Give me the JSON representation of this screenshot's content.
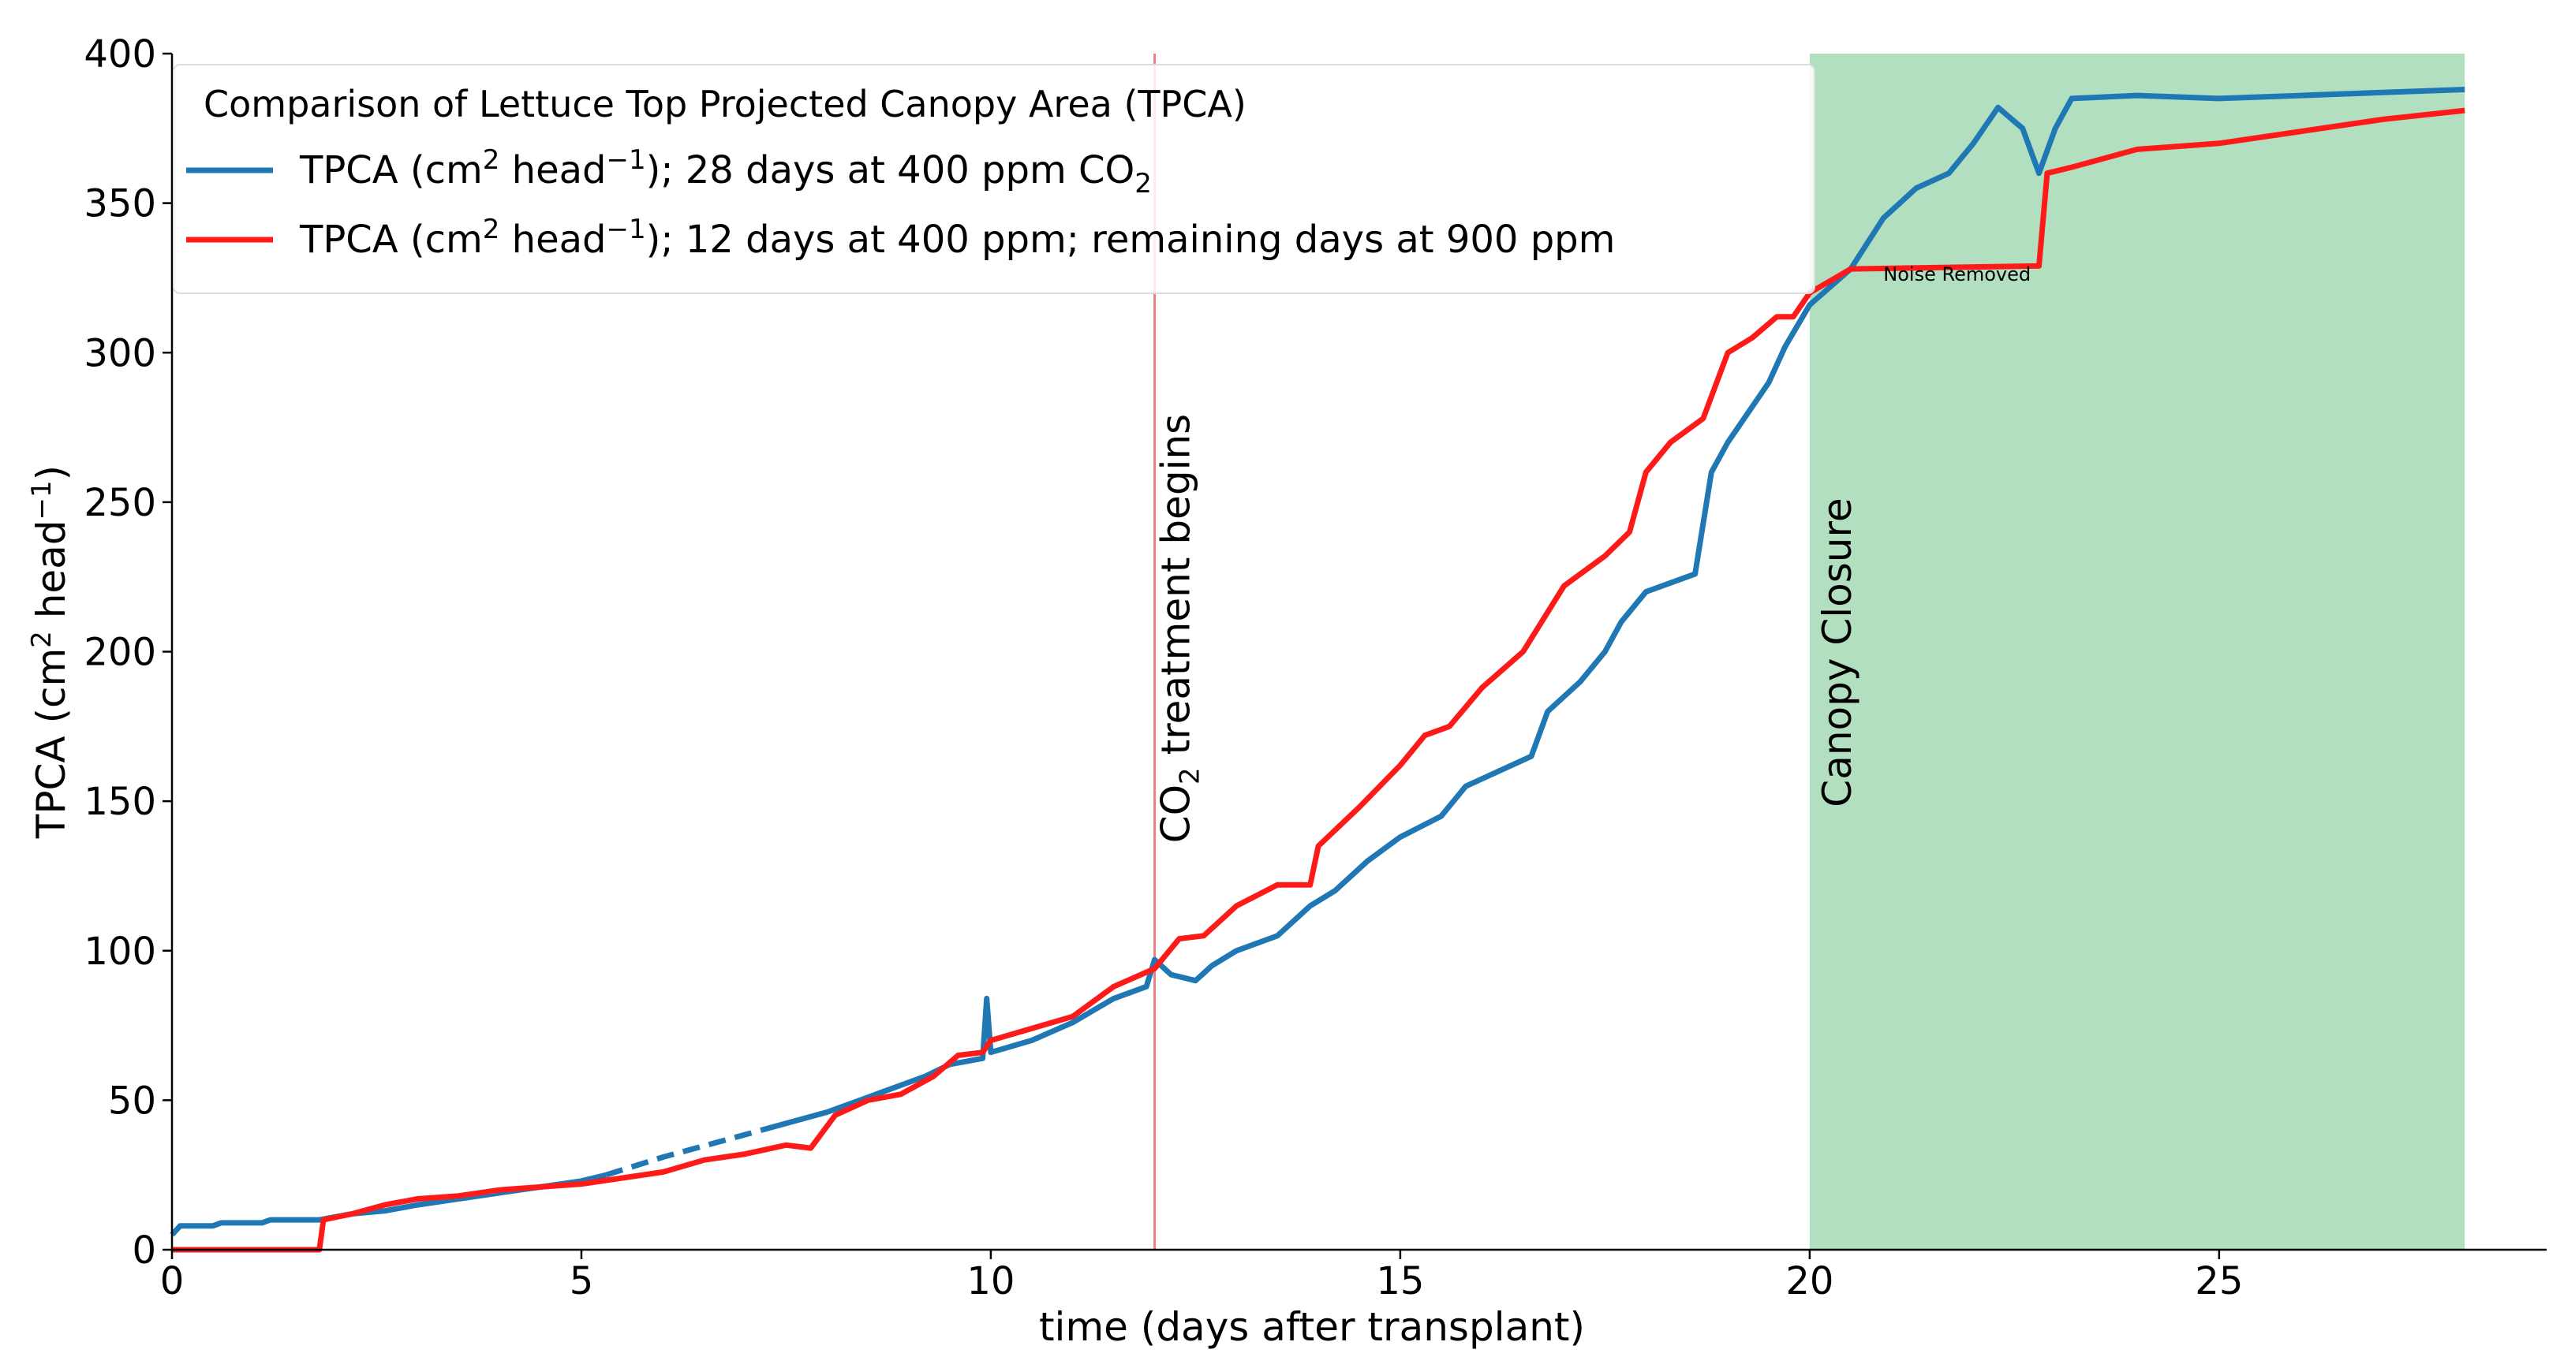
{
  "chart_data": {
    "type": "line",
    "title": "",
    "xlabel": "time (days after transplant)",
    "ylabel_main": "TPCA (cm",
    "ylabel_sup": "2",
    "ylabel_mid": " head",
    "ylabel_sup2": "−1",
    "ylabel_end": ")",
    "xlim": [
      0,
      29
    ],
    "ylim": [
      0,
      400
    ],
    "xticks": [
      0,
      5,
      10,
      15,
      20,
      25
    ],
    "yticks": [
      0,
      50,
      100,
      150,
      200,
      250,
      300,
      350,
      400
    ],
    "grid": false,
    "legend": {
      "placement": "top-left",
      "title": "Comparison of Lettuce Top Projected Canopy Area (TPCA)",
      "entries": [
        {
          "pre": "TPCA (cm",
          "sup": "2",
          "mid": " head",
          "sup2": "−1",
          "post": "); 28 days at 400 ppm CO",
          "sub": "2"
        },
        {
          "pre": "TPCA (cm",
          "sup": "2",
          "mid": " head",
          "sup2": "−1",
          "post": "); 12 days at 400 ppm; remaining days at 900 ppm",
          "sub": ""
        }
      ]
    },
    "annotations": {
      "co2_line_x": 12,
      "co2_color": "#f08080",
      "co2_label_pre": "CO",
      "co2_label_sub": "2",
      "co2_label_post": " treatment begins",
      "shade_range": [
        20,
        28
      ],
      "shade_color": "#b2dfbf",
      "shade_label": "Canopy Closure",
      "noise_label": "Noise Removed"
    },
    "series": [
      {
        "name": "TPCA (cm2 head−1); 28 days at 400 ppm CO2",
        "color": "#1f77b4",
        "segments": [
          {
            "style": "solid",
            "points": [
              [
                0,
                5
              ],
              [
                0.1,
                8
              ],
              [
                0.5,
                8
              ],
              [
                0.6,
                9
              ],
              [
                1.1,
                9
              ],
              [
                1.2,
                10
              ],
              [
                1.8,
                10
              ],
              [
                2.2,
                12
              ],
              [
                2.6,
                13
              ],
              [
                3.0,
                15
              ],
              [
                3.5,
                17
              ],
              [
                4.0,
                19
              ],
              [
                4.5,
                21
              ],
              [
                5.0,
                23
              ],
              [
                5.3,
                25
              ]
            ]
          },
          {
            "style": "dashed",
            "points": [
              [
                5.3,
                25
              ],
              [
                6.0,
                31
              ],
              [
                6.8,
                37
              ],
              [
                7.2,
                40
              ]
            ]
          },
          {
            "style": "solid",
            "points": [
              [
                7.2,
                40
              ],
              [
                7.6,
                43
              ],
              [
                8.0,
                46
              ],
              [
                8.4,
                50
              ],
              [
                8.8,
                54
              ],
              [
                9.2,
                58
              ],
              [
                9.5,
                62
              ],
              [
                9.9,
                64
              ],
              [
                9.95,
                84
              ],
              [
                10.0,
                66
              ],
              [
                10.5,
                70
              ],
              [
                11.0,
                76
              ],
              [
                11.5,
                84
              ],
              [
                11.9,
                88
              ],
              [
                12.0,
                97
              ],
              [
                12.2,
                92
              ],
              [
                12.5,
                90
              ],
              [
                12.7,
                95
              ],
              [
                13.0,
                100
              ],
              [
                13.5,
                105
              ],
              [
                13.9,
                115
              ],
              [
                14.2,
                120
              ],
              [
                14.6,
                130
              ],
              [
                15.0,
                138
              ],
              [
                15.5,
                145
              ],
              [
                15.8,
                155
              ],
              [
                16.2,
                160
              ],
              [
                16.6,
                165
              ],
              [
                16.8,
                180
              ],
              [
                17.2,
                190
              ],
              [
                17.5,
                200
              ],
              [
                17.7,
                210
              ],
              [
                18.0,
                220
              ],
              [
                18.6,
                226
              ],
              [
                18.8,
                260
              ],
              [
                19.0,
                270
              ],
              [
                19.5,
                290
              ],
              [
                19.7,
                302
              ],
              [
                20.0,
                316
              ],
              [
                20.5,
                328
              ],
              [
                20.9,
                345
              ],
              [
                21.3,
                355
              ],
              [
                21.7,
                360
              ],
              [
                22.0,
                370
              ],
              [
                22.3,
                382
              ],
              [
                22.6,
                375
              ],
              [
                22.8,
                360
              ],
              [
                23.0,
                375
              ],
              [
                23.2,
                385
              ],
              [
                24.0,
                386
              ],
              [
                25.0,
                385
              ],
              [
                26.0,
                386
              ],
              [
                27.0,
                387
              ],
              [
                28.0,
                388
              ]
            ]
          }
        ]
      },
      {
        "name": "TPCA (cm2 head−1); 12 days at 400 ppm; remaining days at 900 ppm",
        "color": "#ff1a1a",
        "segments": [
          {
            "style": "solid",
            "points": [
              [
                0,
                0
              ],
              [
                1.8,
                0
              ],
              [
                1.85,
                10
              ],
              [
                2.2,
                12
              ],
              [
                2.6,
                15
              ],
              [
                3.0,
                17
              ],
              [
                3.5,
                18
              ],
              [
                4.0,
                20
              ],
              [
                4.5,
                21
              ],
              [
                5.0,
                22
              ],
              [
                5.5,
                24
              ],
              [
                6.0,
                26
              ],
              [
                6.5,
                30
              ],
              [
                7.0,
                32
              ],
              [
                7.5,
                35
              ],
              [
                7.8,
                34
              ],
              [
                8.1,
                45
              ],
              [
                8.5,
                50
              ],
              [
                8.9,
                52
              ],
              [
                9.3,
                58
              ],
              [
                9.6,
                65
              ],
              [
                9.9,
                66
              ],
              [
                10.0,
                70
              ],
              [
                10.5,
                74
              ],
              [
                11.0,
                78
              ],
              [
                11.5,
                88
              ],
              [
                12.0,
                94
              ],
              [
                12.3,
                104
              ],
              [
                12.6,
                105
              ],
              [
                13.0,
                115
              ],
              [
                13.5,
                122
              ],
              [
                13.9,
                122
              ],
              [
                14.0,
                135
              ],
              [
                14.5,
                148
              ],
              [
                15.0,
                162
              ],
              [
                15.3,
                172
              ],
              [
                15.6,
                175
              ],
              [
                16.0,
                188
              ],
              [
                16.5,
                200
              ],
              [
                17.0,
                222
              ],
              [
                17.5,
                232
              ],
              [
                17.8,
                240
              ],
              [
                18.0,
                260
              ],
              [
                18.3,
                270
              ],
              [
                18.7,
                278
              ],
              [
                19.0,
                300
              ],
              [
                19.3,
                305
              ],
              [
                19.6,
                312
              ],
              [
                19.8,
                312
              ],
              [
                20.0,
                320
              ],
              [
                20.5,
                328
              ],
              [
                22.8,
                329
              ],
              [
                22.9,
                360
              ],
              [
                23.2,
                362
              ],
              [
                24.0,
                368
              ],
              [
                25.0,
                370
              ],
              [
                26.0,
                374
              ],
              [
                27.0,
                378
              ],
              [
                28.0,
                381
              ]
            ]
          }
        ]
      }
    ]
  }
}
